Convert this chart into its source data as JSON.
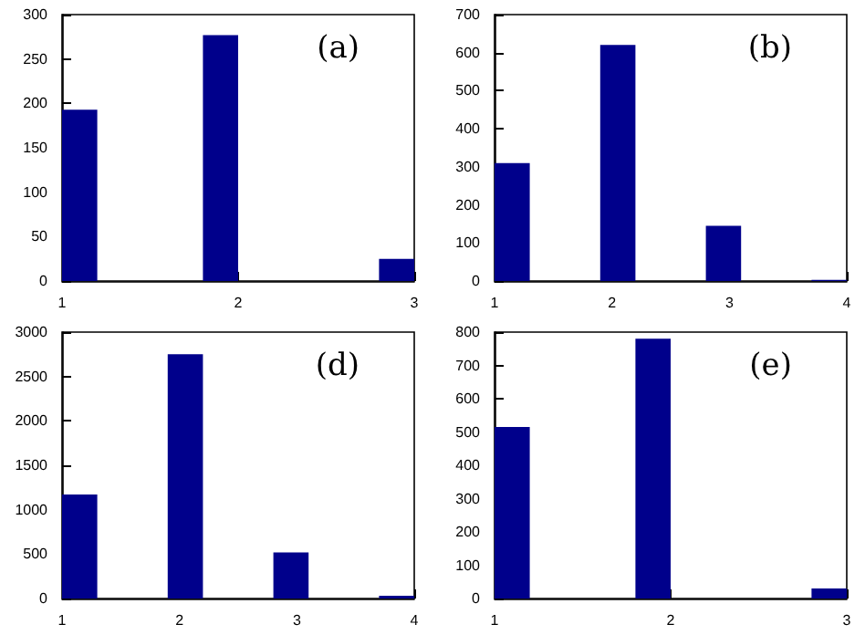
{
  "chart_data": [
    {
      "type": "histogram",
      "bins": [
        1,
        1.2,
        1.4,
        1.6,
        1.8,
        2,
        2.2,
        2.4,
        2.6,
        2.8,
        3
      ],
      "values": [
        193,
        0,
        0,
        0,
        277,
        0,
        0,
        0,
        0,
        25
      ],
      "color": "#00008b",
      "xlim": [
        1,
        3
      ],
      "xticks": [
        1,
        2,
        3
      ],
      "ylim": [
        0,
        300
      ],
      "yticks": [
        0,
        50,
        100,
        150,
        200,
        250,
        300
      ],
      "annotations": [
        "(a)"
      ]
    },
    {
      "type": "histogram",
      "bins": [
        1,
        1.3,
        1.6,
        1.9,
        2.2,
        2.5,
        2.8,
        3.1,
        3.4,
        3.7,
        4
      ],
      "values": [
        310,
        0,
        0,
        620,
        0,
        0,
        145,
        0,
        0,
        3
      ],
      "color": "#00008b",
      "xlim": [
        1,
        4
      ],
      "xticks": [
        1,
        2,
        3,
        4
      ],
      "ylim": [
        0,
        700
      ],
      "yticks": [
        0,
        100,
        200,
        300,
        400,
        500,
        600,
        700
      ],
      "annotations": [
        "(b)"
      ]
    },
    {
      "type": "histogram",
      "bins": [
        1,
        1.3,
        1.6,
        1.9,
        2.2,
        2.5,
        2.8,
        3.1,
        3.4,
        3.7,
        4
      ],
      "values": [
        1170,
        0,
        0,
        2750,
        0,
        0,
        520,
        0,
        0,
        30
      ],
      "color": "#00008b",
      "xlim": [
        1,
        4
      ],
      "xticks": [
        1,
        2,
        3,
        4
      ],
      "ylim": [
        0,
        3000
      ],
      "yticks": [
        0,
        500,
        1000,
        1500,
        2000,
        2500,
        3000
      ],
      "annotations": [
        "(d)"
      ]
    },
    {
      "type": "histogram",
      "bins": [
        1,
        1.2,
        1.4,
        1.6,
        1.8,
        2,
        2.2,
        2.4,
        2.6,
        2.8,
        3
      ],
      "values": [
        515,
        0,
        0,
        0,
        780,
        0,
        0,
        0,
        0,
        30
      ],
      "color": "#00008b",
      "xlim": [
        1,
        3
      ],
      "xticks": [
        1,
        2,
        3
      ],
      "ylim": [
        0,
        800
      ],
      "yticks": [
        0,
        100,
        200,
        300,
        400,
        500,
        600,
        700,
        800
      ],
      "annotations": [
        "(e)"
      ]
    }
  ]
}
